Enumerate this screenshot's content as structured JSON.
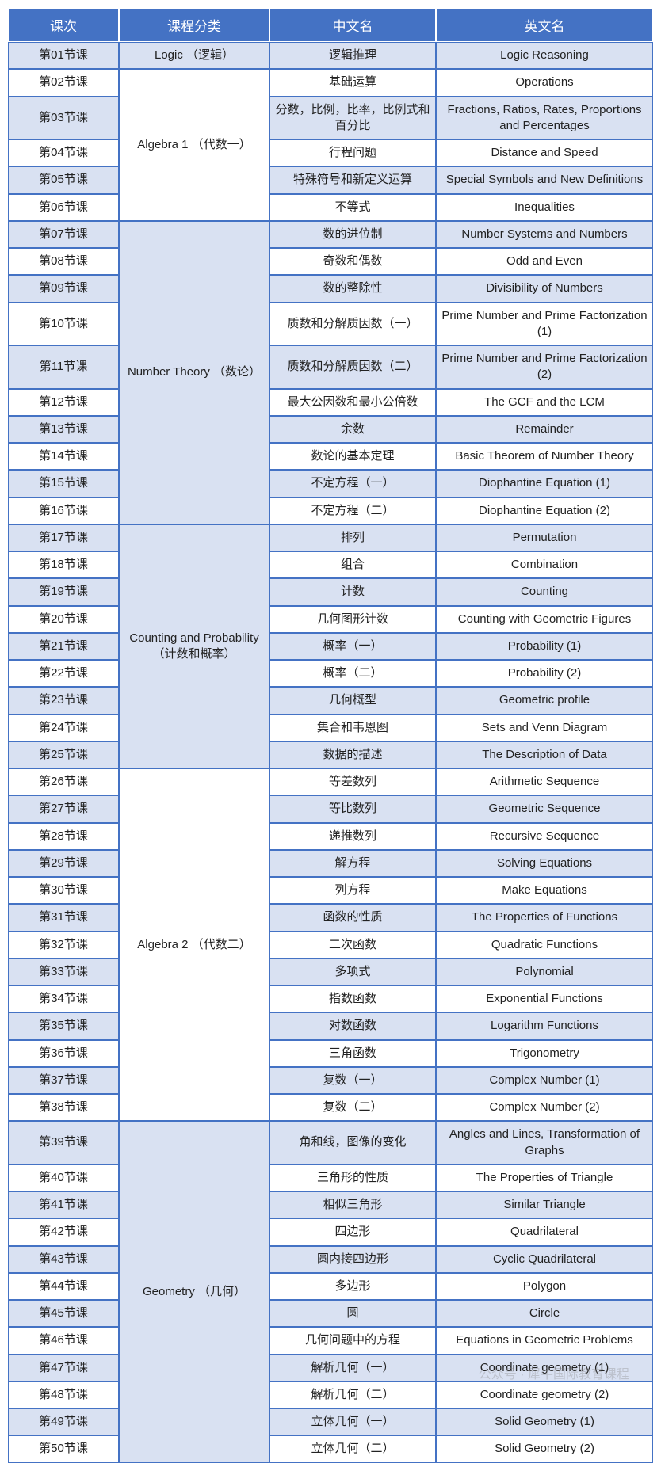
{
  "headers": {
    "lesson": "课次",
    "category": "课程分类",
    "cn": "中文名",
    "en": "英文名"
  },
  "watermark": "公众号 · 犀牛国际教育课程",
  "categories": [
    {
      "label": "Logic （逻辑）",
      "rows": 1
    },
    {
      "label": "Algebra 1 （代数一）",
      "rows": 5
    },
    {
      "label": "Number Theory （数论）",
      "rows": 10
    },
    {
      "label": "Counting and Probability （计数和概率）",
      "rows": 9
    },
    {
      "label": "Algebra 2 （代数二）",
      "rows": 13
    },
    {
      "label": "Geometry （几何）",
      "rows": 12
    }
  ],
  "rows": [
    {
      "lesson": "第01节课",
      "cn": "逻辑推理",
      "en": "Logic Reasoning",
      "shade": true,
      "catStart": 0
    },
    {
      "lesson": "第02节课",
      "cn": "基础运算",
      "en": "Operations",
      "shade": false,
      "catStart": 1
    },
    {
      "lesson": "第03节课",
      "cn": "分数，比例，比率，比例式和百分比",
      "en": "Fractions, Ratios, Rates, Proportions and Percentages",
      "shade": true
    },
    {
      "lesson": "第04节课",
      "cn": "行程问题",
      "en": "Distance and Speed",
      "shade": false
    },
    {
      "lesson": "第05节课",
      "cn": "特殊符号和新定义运算",
      "en": "Special Symbols and New Definitions",
      "shade": true
    },
    {
      "lesson": "第06节课",
      "cn": "不等式",
      "en": "Inequalities",
      "shade": false
    },
    {
      "lesson": "第07节课",
      "cn": "数的进位制",
      "en": "Number Systems and Numbers",
      "shade": true,
      "catStart": 2
    },
    {
      "lesson": "第08节课",
      "cn": "奇数和偶数",
      "en": "Odd and Even",
      "shade": false
    },
    {
      "lesson": "第09节课",
      "cn": "数的整除性",
      "en": "Divisibility of Numbers",
      "shade": true
    },
    {
      "lesson": "第10节课",
      "cn": "质数和分解质因数（一）",
      "en": "Prime Number and Prime Factorization (1)",
      "shade": false
    },
    {
      "lesson": "第11节课",
      "cn": "质数和分解质因数（二）",
      "en": "Prime Number and Prime Factorization (2)",
      "shade": true
    },
    {
      "lesson": "第12节课",
      "cn": "最大公因数和最小公倍数",
      "en": "The GCF and the LCM",
      "shade": false
    },
    {
      "lesson": "第13节课",
      "cn": "余数",
      "en": "Remainder",
      "shade": true
    },
    {
      "lesson": "第14节课",
      "cn": "数论的基本定理",
      "en": "Basic Theorem of Number Theory",
      "shade": false
    },
    {
      "lesson": "第15节课",
      "cn": "不定方程（一）",
      "en": "Diophantine Equation (1)",
      "shade": true
    },
    {
      "lesson": "第16节课",
      "cn": "不定方程（二）",
      "en": "Diophantine Equation (2)",
      "shade": false
    },
    {
      "lesson": "第17节课",
      "cn": "排列",
      "en": "Permutation",
      "shade": true,
      "catStart": 3
    },
    {
      "lesson": "第18节课",
      "cn": "组合",
      "en": "Combination",
      "shade": false
    },
    {
      "lesson": "第19节课",
      "cn": "计数",
      "en": "Counting",
      "shade": true
    },
    {
      "lesson": "第20节课",
      "cn": "几何图形计数",
      "en": "Counting with Geometric Figures",
      "shade": false
    },
    {
      "lesson": "第21节课",
      "cn": "概率（一）",
      "en": "Probability (1)",
      "shade": true
    },
    {
      "lesson": "第22节课",
      "cn": "概率（二）",
      "en": "Probability (2)",
      "shade": false
    },
    {
      "lesson": "第23节课",
      "cn": "几何概型",
      "en": "Geometric profile",
      "shade": true
    },
    {
      "lesson": "第24节课",
      "cn": "集合和韦恩图",
      "en": "Sets and Venn Diagram",
      "shade": false
    },
    {
      "lesson": "第25节课",
      "cn": "数据的描述",
      "en": "The Description of Data",
      "shade": true
    },
    {
      "lesson": "第26节课",
      "cn": "等差数列",
      "en": "Arithmetic Sequence",
      "shade": false,
      "catStart": 4
    },
    {
      "lesson": "第27节课",
      "cn": "等比数列",
      "en": "Geometric Sequence",
      "shade": true
    },
    {
      "lesson": "第28节课",
      "cn": "递推数列",
      "en": "Recursive Sequence",
      "shade": false
    },
    {
      "lesson": "第29节课",
      "cn": "解方程",
      "en": "Solving Equations",
      "shade": true
    },
    {
      "lesson": "第30节课",
      "cn": "列方程",
      "en": "Make Equations",
      "shade": false
    },
    {
      "lesson": "第31节课",
      "cn": "函数的性质",
      "en": "The Properties of Functions",
      "shade": true
    },
    {
      "lesson": "第32节课",
      "cn": "二次函数",
      "en": "Quadratic Functions",
      "shade": false
    },
    {
      "lesson": "第33节课",
      "cn": "多项式",
      "en": "Polynomial",
      "shade": true
    },
    {
      "lesson": "第34节课",
      "cn": "指数函数",
      "en": "Exponential Functions",
      "shade": false
    },
    {
      "lesson": "第35节课",
      "cn": "对数函数",
      "en": "Logarithm Functions",
      "shade": true
    },
    {
      "lesson": "第36节课",
      "cn": "三角函数",
      "en": "Trigonometry",
      "shade": false
    },
    {
      "lesson": "第37节课",
      "cn": "复数（一）",
      "en": "Complex Number (1)",
      "shade": true
    },
    {
      "lesson": "第38节课",
      "cn": "复数（二）",
      "en": "Complex Number (2)",
      "shade": false
    },
    {
      "lesson": "第39节课",
      "cn": "角和线，图像的变化",
      "en": "Angles and Lines, Transformation of Graphs",
      "shade": true,
      "catStart": 5
    },
    {
      "lesson": "第40节课",
      "cn": "三角形的性质",
      "en": "The Properties of Triangle",
      "shade": false
    },
    {
      "lesson": "第41节课",
      "cn": "相似三角形",
      "en": "Similar Triangle",
      "shade": true
    },
    {
      "lesson": "第42节课",
      "cn": "四边形",
      "en": "Quadrilateral",
      "shade": false
    },
    {
      "lesson": "第43节课",
      "cn": "圆内接四边形",
      "en": "Cyclic Quadrilateral",
      "shade": true
    },
    {
      "lesson": "第44节课",
      "cn": "多边形",
      "en": "Polygon",
      "shade": false
    },
    {
      "lesson": "第45节课",
      "cn": "圆",
      "en": "Circle",
      "shade": true
    },
    {
      "lesson": "第46节课",
      "cn": "几何问题中的方程",
      "en": "Equations in Geometric Problems",
      "shade": false
    },
    {
      "lesson": "第47节课",
      "cn": "解析几何（一）",
      "en": "Coordinate geometry (1)",
      "shade": true
    },
    {
      "lesson": "第48节课",
      "cn": "解析几何（二）",
      "en": "Coordinate geometry (2)",
      "shade": false
    },
    {
      "lesson": "第49节课",
      "cn": "立体几何（一）",
      "en": "Solid Geometry (1)",
      "shade": true
    },
    {
      "lesson": "第50节课",
      "cn": "立体几何（二）",
      "en": "Solid Geometry (2)",
      "shade": false
    }
  ]
}
